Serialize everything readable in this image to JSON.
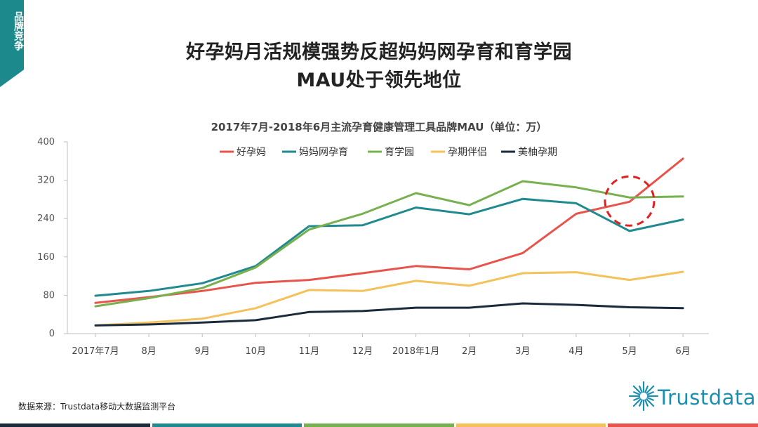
{
  "side_tab": {
    "label": "品牌竞争",
    "color": "#1c8a8c"
  },
  "header": {
    "title_line1": "好孕妈月活规模强势反超妈妈网孕育和育学园",
    "title_line2": "MAU处于领先地位"
  },
  "chart_data": {
    "type": "line",
    "title": "2017年7月-2018年6月主流孕育健康管理工具品牌MAU（单位：万）",
    "categories": [
      "2017年7月",
      "8月",
      "9月",
      "10月",
      "11月",
      "12月",
      "2018年1月",
      "2月",
      "3月",
      "4月",
      "5月",
      "6月"
    ],
    "ylim": [
      0,
      400
    ],
    "yticks": [
      0,
      80,
      160,
      240,
      320,
      400
    ],
    "grid": false,
    "legend_position": "top",
    "series": [
      {
        "name": "好孕妈",
        "color": "#e8544c",
        "values": [
          64,
          76,
          89,
          106,
          112,
          126,
          141,
          134,
          168,
          250,
          275,
          365
        ]
      },
      {
        "name": "妈妈网孕育",
        "color": "#1f8a8f",
        "values": [
          79,
          89,
          105,
          141,
          224,
          226,
          263,
          249,
          281,
          272,
          214,
          238
        ]
      },
      {
        "name": "育学园",
        "color": "#77b04e",
        "values": [
          57,
          74,
          95,
          138,
          217,
          250,
          293,
          268,
          318,
          305,
          284,
          286
        ]
      },
      {
        "name": "孕期伴侣",
        "color": "#f5c15a",
        "values": [
          17,
          23,
          31,
          53,
          91,
          89,
          110,
          100,
          126,
          128,
          112,
          129
        ]
      },
      {
        "name": "美柚孕期",
        "color": "#1a2b3c",
        "values": [
          17,
          19,
          23,
          28,
          45,
          47,
          54,
          54,
          63,
          60,
          55,
          53
        ]
      }
    ],
    "annotation": {
      "type": "dashed-circle",
      "around": "5月",
      "color": "#e02020"
    }
  },
  "source": "数据来源：Trustdata移动大数据监测平台",
  "logo": {
    "text": "Trustdata",
    "color": "#1c8fb0"
  },
  "footer_colors": [
    "#1a2b3c",
    "#1f8a8f",
    "#77b04e",
    "#f5c15a",
    "#e8544c"
  ]
}
